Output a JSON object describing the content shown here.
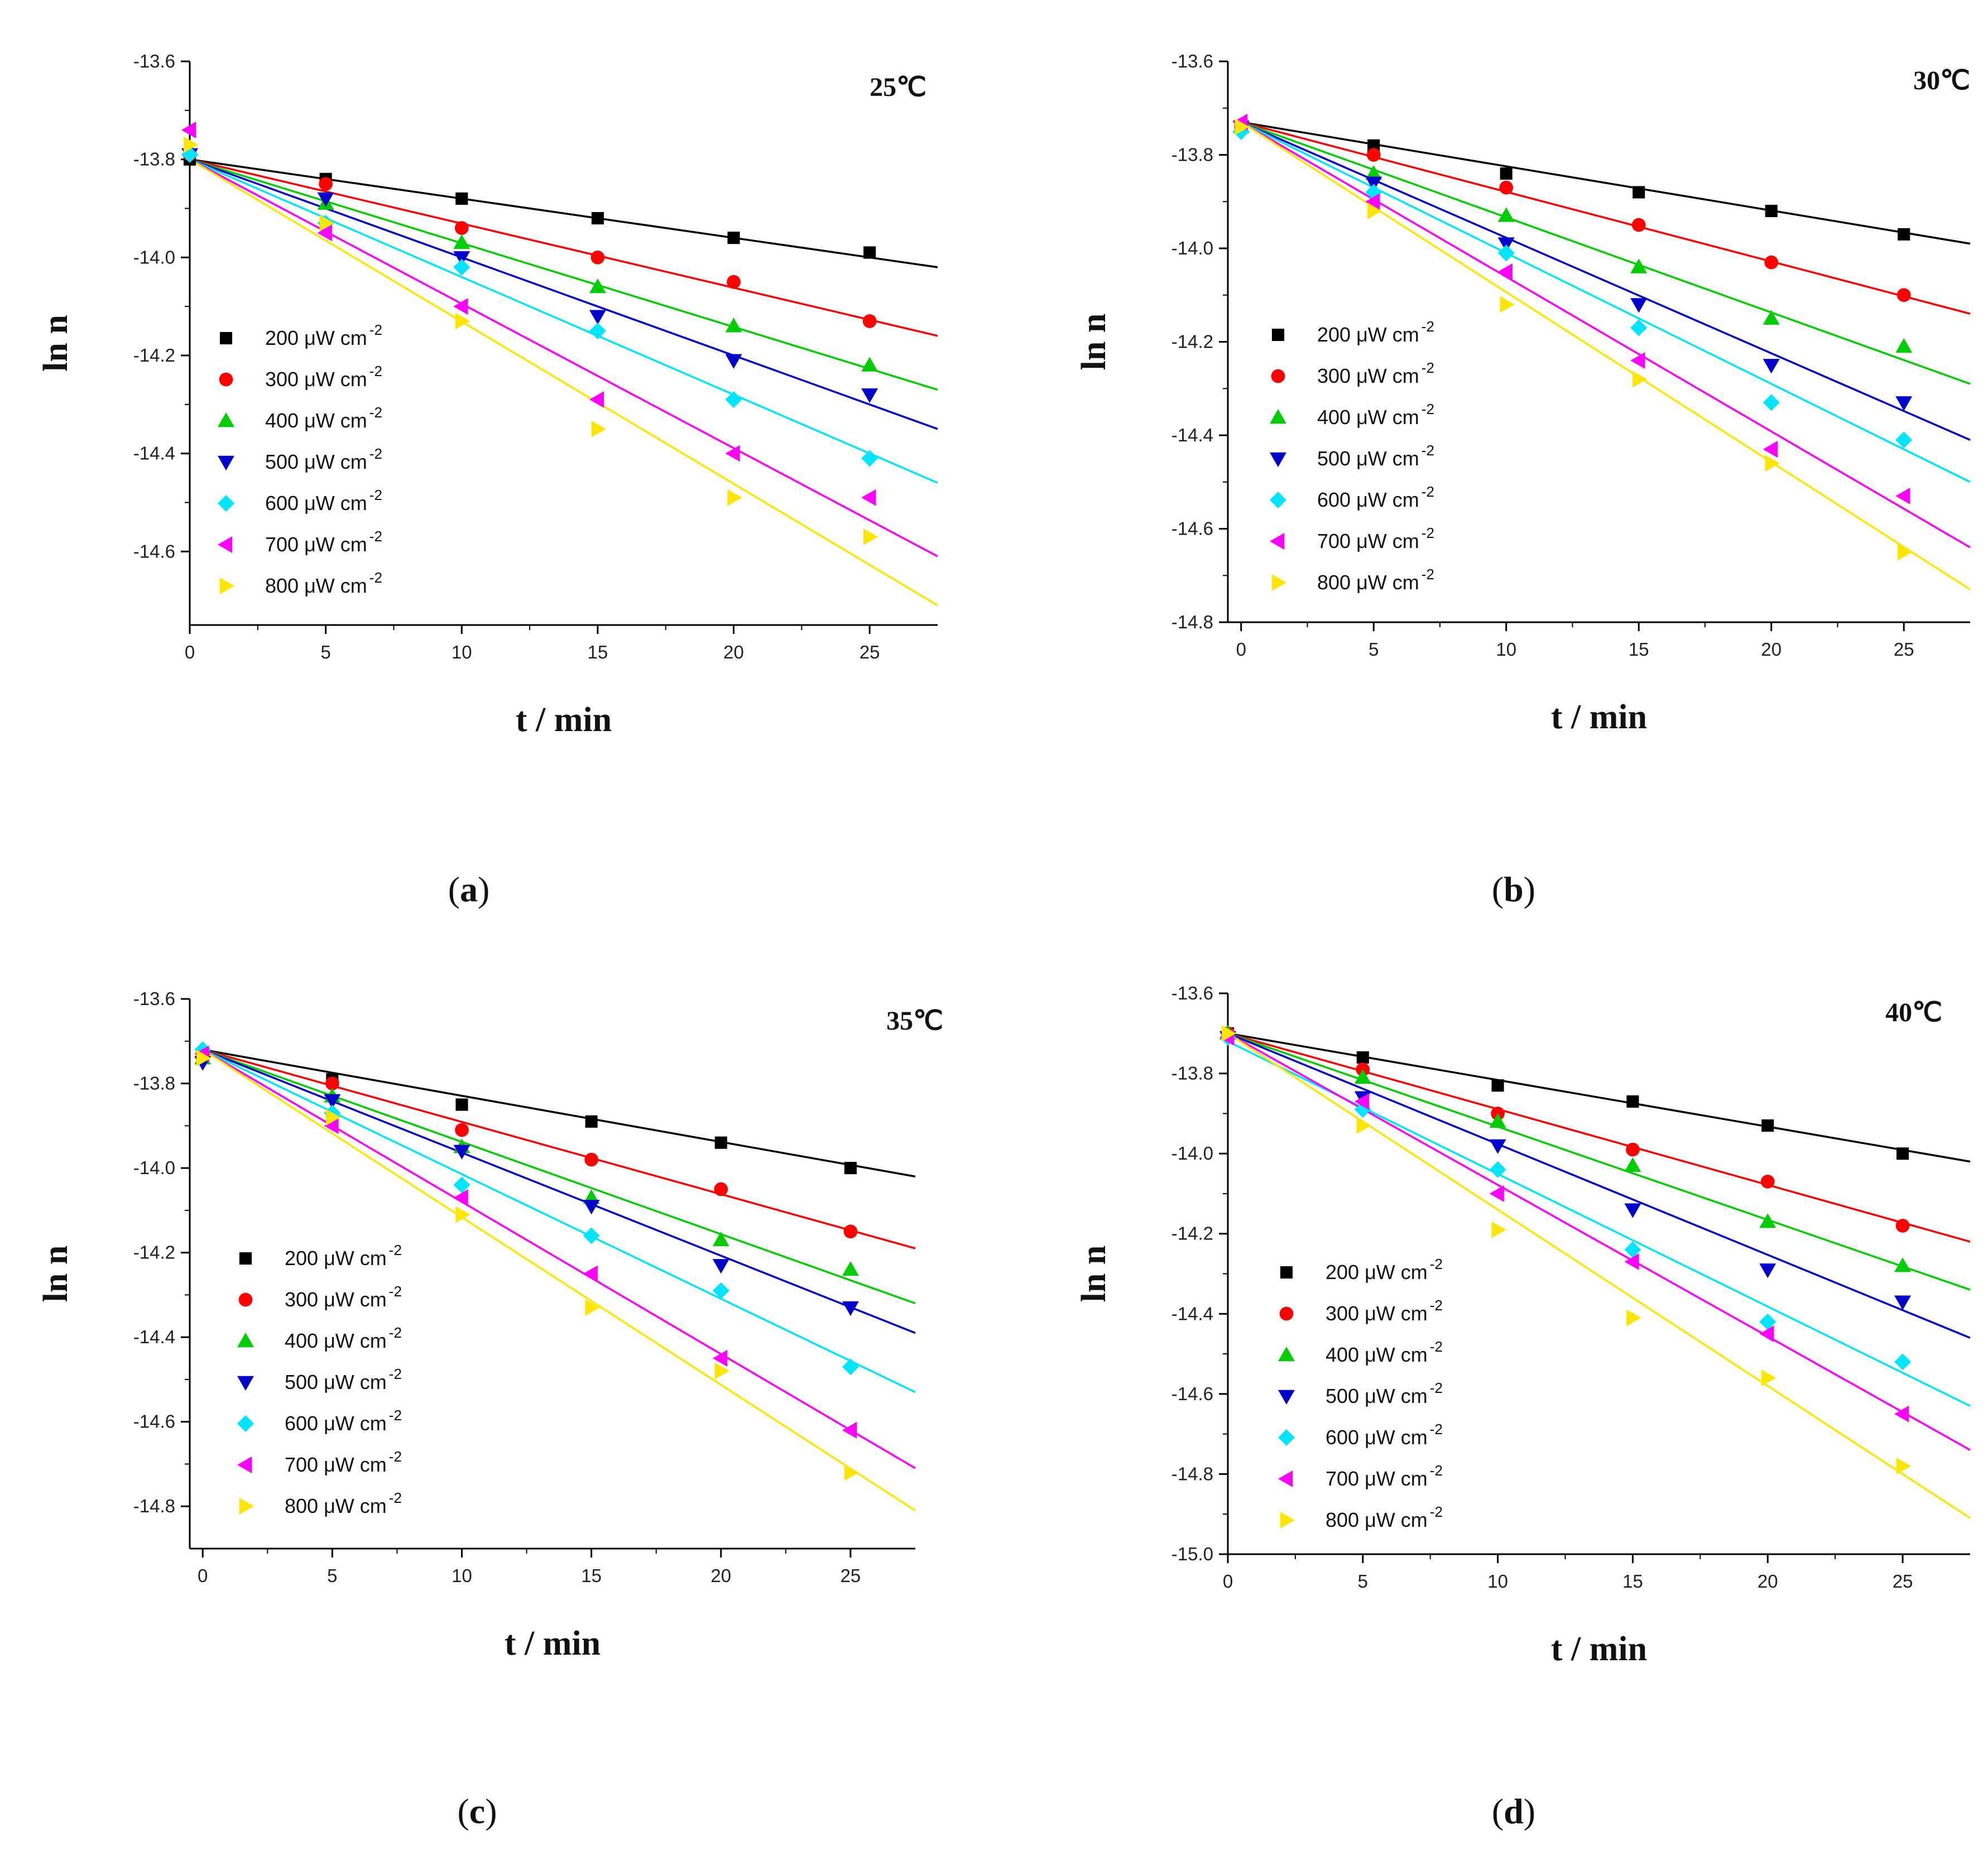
{
  "figure": {
    "captions": [
      "a",
      "b",
      "c",
      "d"
    ]
  },
  "chart_data": [
    {
      "type": "scatter",
      "title": "25℃",
      "xlabel": "t / min",
      "ylabel": "ln n",
      "xlim": [
        0,
        27.5
      ],
      "ylim": [
        -14.75,
        -13.6
      ],
      "xticks": [
        0,
        5,
        10,
        15,
        20,
        25
      ],
      "yticks": [
        -13.6,
        -13.8,
        -14.0,
        -14.2,
        -14.4,
        -14.6
      ],
      "x": [
        0,
        5,
        10,
        15,
        20,
        25
      ],
      "series": [
        {
          "name": "200 μW cm",
          "unit_sup": "-2",
          "color": "#000000",
          "marker": "square",
          "values": [
            -13.8,
            -13.84,
            -13.88,
            -13.92,
            -13.96,
            -13.99
          ],
          "fit": [
            -13.8,
            -14.02
          ]
        },
        {
          "name": "300 μW cm",
          "unit_sup": "-2",
          "color": "#ff0000",
          "marker": "circle",
          "values": [
            -13.79,
            -13.85,
            -13.94,
            -14.0,
            -14.05,
            -14.13
          ],
          "fit": [
            -13.8,
            -14.16
          ]
        },
        {
          "name": "400 μW cm",
          "unit_sup": "-2",
          "color": "#00cc00",
          "marker": "triangle-up",
          "values": [
            -13.78,
            -13.89,
            -13.97,
            -14.06,
            -14.14,
            -14.22
          ],
          "fit": [
            -13.8,
            -14.27
          ]
        },
        {
          "name": "500 μW cm",
          "unit_sup": "-2",
          "color": "#0000cc",
          "marker": "triangle-down",
          "values": [
            -13.79,
            -13.88,
            -14.0,
            -14.12,
            -14.21,
            -14.28
          ],
          "fit": [
            -13.8,
            -14.35
          ]
        },
        {
          "name": "600 μW cm",
          "unit_sup": "-2",
          "color": "#00e5ff",
          "marker": "diamond",
          "values": [
            -13.79,
            -13.93,
            -14.02,
            -14.15,
            -14.29,
            -14.41
          ],
          "fit": [
            -13.8,
            -14.46
          ]
        },
        {
          "name": "700 μW cm",
          "unit_sup": "-2",
          "color": "#ff00ff",
          "marker": "triangle-left",
          "values": [
            -13.74,
            -13.95,
            -14.1,
            -14.29,
            -14.4,
            -14.49
          ],
          "fit": [
            -13.8,
            -14.61
          ]
        },
        {
          "name": "800 μW cm",
          "unit_sup": "-2",
          "color": "#ffe600",
          "marker": "triangle-right",
          "values": [
            -13.77,
            -13.93,
            -14.13,
            -14.35,
            -14.49,
            -14.57
          ],
          "fit": [
            -13.8,
            -14.71
          ]
        }
      ]
    },
    {
      "type": "scatter",
      "title": "30℃",
      "xlabel": "t / min",
      "ylabel": "ln n",
      "xlim": [
        -0.5,
        27.5
      ],
      "ylim": [
        -14.8,
        -13.6
      ],
      "xticks": [
        0,
        5,
        10,
        15,
        20,
        25
      ],
      "yticks": [
        -13.6,
        -13.8,
        -14.0,
        -14.2,
        -14.4,
        -14.6,
        -14.8
      ],
      "x": [
        0,
        5,
        10,
        15,
        20,
        25
      ],
      "series": [
        {
          "name": "200 μW cm",
          "unit_sup": "-2",
          "color": "#000000",
          "marker": "square",
          "values": [
            -13.74,
            -13.78,
            -13.84,
            -13.88,
            -13.92,
            -13.97
          ],
          "fit": [
            -13.73,
            -13.99
          ]
        },
        {
          "name": "300 μW cm",
          "unit_sup": "-2",
          "color": "#ff0000",
          "marker": "circle",
          "values": [
            -13.74,
            -13.8,
            -13.87,
            -13.95,
            -14.03,
            -14.1
          ],
          "fit": [
            -13.73,
            -14.14
          ]
        },
        {
          "name": "400 μW cm",
          "unit_sup": "-2",
          "color": "#00cc00",
          "marker": "triangle-up",
          "values": [
            -13.74,
            -13.84,
            -13.93,
            -14.04,
            -14.15,
            -14.21
          ],
          "fit": [
            -13.73,
            -14.29
          ]
        },
        {
          "name": "500 μW cm",
          "unit_sup": "-2",
          "color": "#0000cc",
          "marker": "triangle-down",
          "values": [
            -13.74,
            -13.86,
            -13.99,
            -14.12,
            -14.25,
            -14.33
          ],
          "fit": [
            -13.73,
            -14.41
          ]
        },
        {
          "name": "600 μW cm",
          "unit_sup": "-2",
          "color": "#00e5ff",
          "marker": "diamond",
          "values": [
            -13.75,
            -13.88,
            -14.01,
            -14.17,
            -14.33,
            -14.41
          ],
          "fit": [
            -13.73,
            -14.5
          ]
        },
        {
          "name": "700 μW cm",
          "unit_sup": "-2",
          "color": "#ff00ff",
          "marker": "triangle-left",
          "values": [
            -13.73,
            -13.9,
            -14.05,
            -14.24,
            -14.43,
            -14.53
          ],
          "fit": [
            -13.73,
            -14.64
          ]
        },
        {
          "name": "800 μW cm",
          "unit_sup": "-2",
          "color": "#ffe600",
          "marker": "triangle-right",
          "values": [
            -13.74,
            -13.92,
            -14.12,
            -14.28,
            -14.46,
            -14.65
          ],
          "fit": [
            -13.73,
            -14.73
          ]
        }
      ]
    },
    {
      "type": "scatter",
      "title": "35℃",
      "xlabel": "t / min",
      "ylabel": "ln n",
      "xlim": [
        -0.5,
        27.5
      ],
      "ylim": [
        -14.9,
        -13.6
      ],
      "xticks": [
        0,
        5,
        10,
        15,
        20,
        25
      ],
      "yticks": [
        -13.6,
        -13.8,
        -14.0,
        -14.2,
        -14.4,
        -14.6,
        -14.8
      ],
      "x": [
        0,
        5,
        10,
        15,
        20,
        25
      ],
      "series": [
        {
          "name": "200 μW cm",
          "unit_sup": "-2",
          "color": "#000000",
          "marker": "square",
          "values": [
            -13.73,
            -13.79,
            -13.85,
            -13.89,
            -13.94,
            -14.0
          ],
          "fit": [
            -13.72,
            -14.02
          ]
        },
        {
          "name": "300 μW cm",
          "unit_sup": "-2",
          "color": "#ff0000",
          "marker": "circle",
          "values": [
            -13.73,
            -13.8,
            -13.91,
            -13.98,
            -14.05,
            -14.15
          ],
          "fit": [
            -13.72,
            -14.19
          ]
        },
        {
          "name": "400 μW cm",
          "unit_sup": "-2",
          "color": "#00cc00",
          "marker": "triangle-up",
          "values": [
            -13.74,
            -13.83,
            -13.95,
            -14.07,
            -14.17,
            -14.24
          ],
          "fit": [
            -13.72,
            -14.32
          ]
        },
        {
          "name": "500 μW cm",
          "unit_sup": "-2",
          "color": "#0000cc",
          "marker": "triangle-down",
          "values": [
            -13.75,
            -13.84,
            -13.96,
            -14.09,
            -14.23,
            -14.33
          ],
          "fit": [
            -13.72,
            -14.39
          ]
        },
        {
          "name": "600 μW cm",
          "unit_sup": "-2",
          "color": "#00e5ff",
          "marker": "diamond",
          "values": [
            -13.72,
            -13.87,
            -14.04,
            -14.16,
            -14.29,
            -14.47
          ],
          "fit": [
            -13.72,
            -14.53
          ]
        },
        {
          "name": "700 μW cm",
          "unit_sup": "-2",
          "color": "#ff00ff",
          "marker": "triangle-left",
          "values": [
            -13.73,
            -13.9,
            -14.07,
            -14.25,
            -14.45,
            -14.62
          ],
          "fit": [
            -13.72,
            -14.71
          ]
        },
        {
          "name": "800 μW cm",
          "unit_sup": "-2",
          "color": "#ffe600",
          "marker": "triangle-right",
          "values": [
            -13.74,
            -13.88,
            -14.11,
            -14.33,
            -14.48,
            -14.72
          ],
          "fit": [
            -13.72,
            -14.81
          ]
        }
      ]
    },
    {
      "type": "scatter",
      "title": "40℃",
      "xlabel": "t / min",
      "ylabel": "ln n",
      "xlim": [
        0,
        27.5
      ],
      "ylim": [
        -15.0,
        -13.6
      ],
      "xticks": [
        0,
        5,
        10,
        15,
        20,
        25
      ],
      "yticks": [
        -13.6,
        -13.8,
        -14.0,
        -14.2,
        -14.4,
        -14.6,
        -14.8,
        -15.0
      ],
      "x": [
        0,
        5,
        10,
        15,
        20,
        25
      ],
      "series": [
        {
          "name": "200 μW cm",
          "unit_sup": "-2",
          "color": "#000000",
          "marker": "square",
          "values": [
            -13.7,
            -13.76,
            -13.83,
            -13.87,
            -13.93,
            -14.0
          ],
          "fit": [
            -13.7,
            -14.02
          ]
        },
        {
          "name": "300 μW cm",
          "unit_sup": "-2",
          "color": "#ff0000",
          "marker": "circle",
          "values": [
            -13.7,
            -13.79,
            -13.9,
            -13.99,
            -14.07,
            -14.18
          ],
          "fit": [
            -13.7,
            -14.22
          ]
        },
        {
          "name": "400 μW cm",
          "unit_sup": "-2",
          "color": "#00cc00",
          "marker": "triangle-up",
          "values": [
            -13.7,
            -13.81,
            -13.92,
            -14.03,
            -14.17,
            -14.28
          ],
          "fit": [
            -13.7,
            -14.34
          ]
        },
        {
          "name": "500 μW cm",
          "unit_sup": "-2",
          "color": "#0000cc",
          "marker": "triangle-down",
          "values": [
            -13.71,
            -13.86,
            -13.98,
            -14.14,
            -14.29,
            -14.37
          ],
          "fit": [
            -13.7,
            -14.46
          ]
        },
        {
          "name": "600 μW cm",
          "unit_sup": "-2",
          "color": "#00e5ff",
          "marker": "diamond",
          "values": [
            -13.71,
            -13.89,
            -14.04,
            -14.24,
            -14.42,
            -14.52
          ],
          "fit": [
            -13.72,
            -14.63
          ]
        },
        {
          "name": "700 μW cm",
          "unit_sup": "-2",
          "color": "#ff00ff",
          "marker": "triangle-left",
          "values": [
            -13.71,
            -13.87,
            -14.1,
            -14.27,
            -14.45,
            -14.65
          ],
          "fit": [
            -13.7,
            -14.74
          ]
        },
        {
          "name": "800 μW cm",
          "unit_sup": "-2",
          "color": "#ffe600",
          "marker": "triangle-right",
          "values": [
            -13.7,
            -13.93,
            -14.19,
            -14.41,
            -14.56,
            -14.78
          ],
          "fit": [
            -13.7,
            -14.91
          ]
        }
      ]
    }
  ]
}
